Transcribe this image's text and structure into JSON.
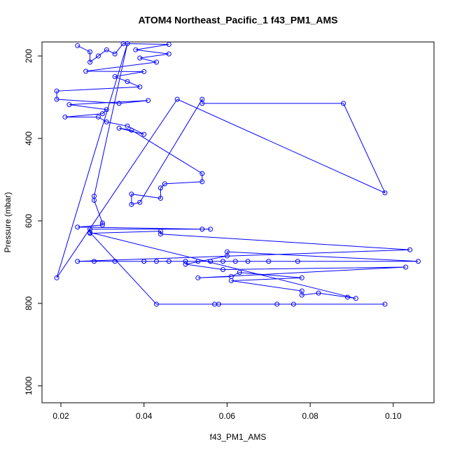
{
  "chart_data": {
    "type": "line",
    "title": "ATOM4 Northeast_Pacific_1 f43_PM1_AMS",
    "x_label": "f43_PM1_AMS",
    "y_label": "Pressure (mbar)",
    "xlim": [
      0.01545,
      0.1098
    ],
    "ylim": [
      1041,
      166
    ],
    "xticks": [
      0.02,
      0.04,
      0.06,
      0.08,
      {
        "value": 0.1,
        "label": "0.10"
      }
    ],
    "yticks": [
      200,
      400,
      600,
      800,
      1000
    ],
    "series": [
      {
        "color": "#0000ff",
        "x": [
          0.024,
          0.027,
          0.027,
          0.029,
          0.031,
          0.033,
          0.035,
          0.046,
          0.038,
          0.046,
          0.039,
          0.043,
          0.026,
          0.04,
          0.033,
          0.036,
          0.039,
          0.019,
          0.019,
          0.034,
          0.041,
          0.022,
          0.031,
          0.03,
          0.021,
          0.029,
          0.031,
          0.036,
          0.04,
          0.034,
          0.037,
          0.054,
          0.054,
          0.045,
          0.044,
          0.044,
          0.037,
          0.037,
          0.039,
          0.054,
          0.054,
          0.088,
          0.098,
          0.048,
          0.019,
          0.036,
          0.028,
          0.028,
          0.03,
          0.03,
          0.024,
          0.054,
          0.056,
          0.027,
          0.027,
          0.044,
          0.044,
          0.104,
          0.024,
          0.028,
          0.033,
          0.04,
          0.043,
          0.046,
          0.05,
          0.053,
          0.056,
          0.059,
          0.062,
          0.065,
          0.07,
          0.077,
          0.106,
          0.06,
          0.06,
          0.05,
          0.059,
          0.103,
          0.053,
          0.061,
          0.063,
          0.078,
          0.061,
          0.078,
          0.078,
          0.082,
          0.089,
          0.091,
          0.027,
          0.043,
          0.057,
          0.058,
          0.072,
          0.076,
          0.098
        ],
        "values": [
          175,
          190,
          215,
          200,
          185,
          195,
          170,
          172,
          185,
          195,
          205,
          215,
          237,
          238,
          250,
          262,
          275,
          285,
          305,
          315,
          308,
          318,
          330,
          340,
          348,
          348,
          360,
          370,
          390,
          375,
          380,
          485,
          505,
          510,
          520,
          545,
          535,
          560,
          555,
          305,
          315,
          315,
          532,
          305,
          738,
          170,
          540,
          550,
          605,
          610,
          615,
          620,
          620,
          620,
          630,
          625,
          632,
          670,
          698,
          698,
          698,
          698,
          698,
          698,
          698,
          698,
          698,
          698,
          698,
          698,
          698,
          698,
          698,
          675,
          685,
          705,
          718,
          712,
          738,
          735,
          725,
          738,
          745,
          770,
          780,
          775,
          785,
          788,
          628,
          802,
          802,
          802,
          802,
          802,
          802
        ]
      }
    ]
  }
}
